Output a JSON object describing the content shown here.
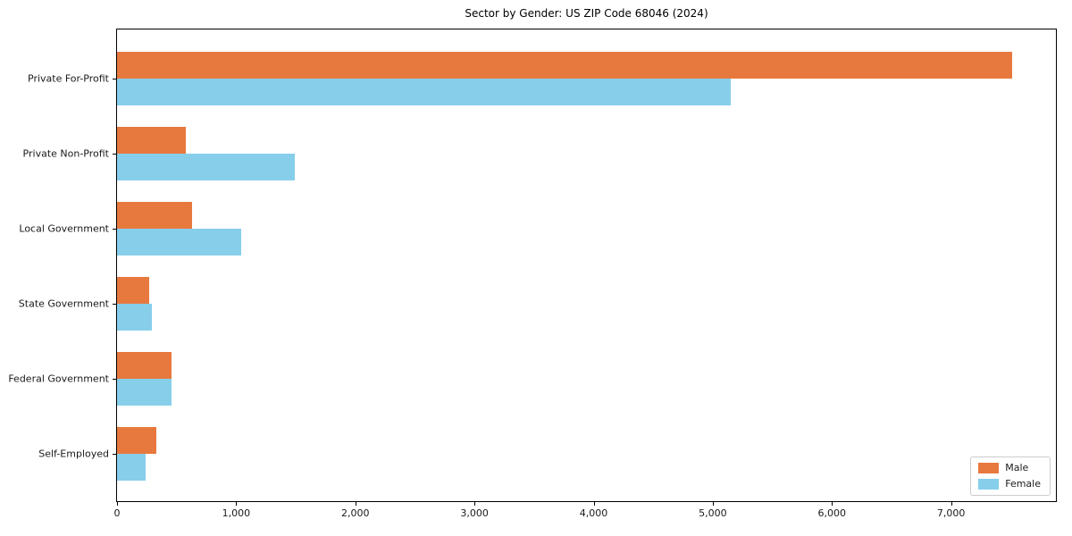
{
  "title": "Sector by Gender: US ZIP Code 68046 (2024)",
  "chart_data": {
    "type": "bar",
    "orientation": "horizontal",
    "title": "Sector by Gender: US ZIP Code 68046 (2024)",
    "categories": [
      "Private For-Profit",
      "Private Non-Profit",
      "Local Government",
      "State Government",
      "Federal Government",
      "Self-Employed"
    ],
    "series": [
      {
        "name": "Male",
        "color": "#e8793e",
        "values": [
          7510,
          575,
          630,
          270,
          460,
          330
        ]
      },
      {
        "name": "Female",
        "color": "#87ceeb",
        "values": [
          5150,
          1490,
          1040,
          290,
          460,
          240
        ]
      }
    ],
    "xlabel": "",
    "ylabel": "",
    "xlim": [
      0,
      7880
    ],
    "xtick_values": [
      0,
      1000,
      2000,
      3000,
      4000,
      5000,
      6000,
      7000
    ],
    "xtick_labels": [
      "0",
      "1,000",
      "2,000",
      "3,000",
      "4,000",
      "5,000",
      "6,000",
      "7,000"
    ],
    "grid": false,
    "legend_position": "lower right",
    "background": "#ffffff"
  }
}
